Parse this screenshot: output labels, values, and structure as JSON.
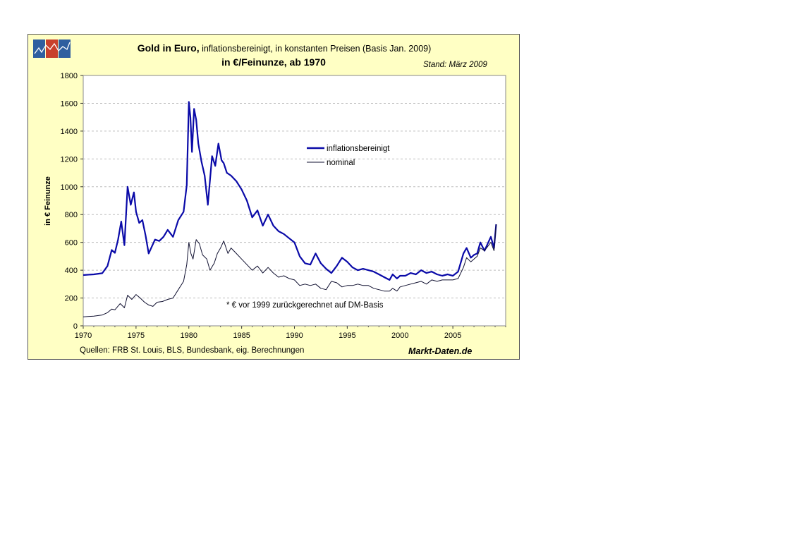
{
  "chart_data": {
    "type": "line",
    "title_main": "Gold in Euro,",
    "title_sub": " inflationsbereinigt, in konstanten Preisen (Basis Jan. 2009)",
    "title_line2": "in €/Feinunze, ab 1970",
    "stand": "Stand: März 2009",
    "ylabel": "in € Feinunze",
    "xlabel": "",
    "ylim": [
      0,
      1800
    ],
    "xlim": [
      1970,
      2010
    ],
    "yticks": [
      "0",
      "200",
      "400",
      "600",
      "800",
      "1000",
      "1200",
      "1400",
      "1600",
      "1800"
    ],
    "xticks": [
      "1970",
      "1975",
      "1980",
      "1985",
      "1990",
      "1995",
      "2000",
      "2005"
    ],
    "grid": "horizontal dashed",
    "legend_position": "upper-center",
    "annotation": "* € vor 1999 zurückgerechnet auf DM-Basis",
    "sources": "Quellen: FRB St. Louis, BLS, Bundesbank, eig. Berechnungen",
    "brand": "Markt-Daten.de",
    "colors": {
      "real": "#0a0aa8",
      "nominal": "#101030",
      "background": "#ffffc4",
      "plot": "#ffffff"
    },
    "series": [
      {
        "name": "inflationsbereinigt",
        "x": [
          1970.0,
          1971.0,
          1971.8,
          1972.3,
          1972.7,
          1973.0,
          1973.3,
          1973.6,
          1973.9,
          1974.2,
          1974.5,
          1974.8,
          1975.0,
          1975.3,
          1975.6,
          1975.9,
          1976.2,
          1976.5,
          1976.8,
          1977.2,
          1977.6,
          1978.0,
          1978.5,
          1979.0,
          1979.5,
          1979.8,
          1980.0,
          1980.15,
          1980.3,
          1980.5,
          1980.7,
          1980.9,
          1981.2,
          1981.5,
          1981.8,
          1982.2,
          1982.5,
          1982.8,
          1983.1,
          1983.3,
          1983.6,
          1984.0,
          1984.5,
          1985.0,
          1985.5,
          1986.0,
          1986.5,
          1987.0,
          1987.5,
          1988.0,
          1988.5,
          1989.0,
          1989.5,
          1990.0,
          1990.5,
          1991.0,
          1991.5,
          1992.0,
          1992.5,
          1993.0,
          1993.5,
          1994.0,
          1994.5,
          1995.0,
          1995.5,
          1996.0,
          1996.5,
          1997.0,
          1997.5,
          1998.0,
          1998.5,
          1999.0,
          1999.3,
          1999.7,
          2000.0,
          2000.5,
          2001.0,
          2001.5,
          2002.0,
          2002.5,
          2003.0,
          2003.5,
          2004.0,
          2004.5,
          2005.0,
          2005.5,
          2006.0,
          2006.3,
          2006.7,
          2007.0,
          2007.3,
          2007.6,
          2008.0,
          2008.3,
          2008.6,
          2008.9,
          2009.1
        ],
        "values": [
          365,
          370,
          378,
          430,
          545,
          525,
          620,
          750,
          580,
          1000,
          870,
          960,
          820,
          740,
          760,
          650,
          520,
          570,
          620,
          610,
          640,
          690,
          640,
          760,
          820,
          1010,
          1610,
          1500,
          1250,
          1560,
          1480,
          1310,
          1180,
          1080,
          870,
          1220,
          1150,
          1310,
          1190,
          1170,
          1100,
          1080,
          1040,
          980,
          900,
          780,
          830,
          720,
          800,
          720,
          680,
          660,
          630,
          600,
          500,
          450,
          440,
          520,
          450,
          410,
          380,
          430,
          490,
          460,
          420,
          400,
          410,
          400,
          390,
          370,
          350,
          330,
          370,
          340,
          360,
          360,
          380,
          370,
          400,
          380,
          390,
          370,
          360,
          370,
          360,
          390,
          520,
          560,
          490,
          510,
          520,
          600,
          540,
          590,
          640,
          560,
          730
        ]
      },
      {
        "name": "nominal",
        "x": [
          1970.0,
          1971.0,
          1971.8,
          1972.3,
          1972.7,
          1973.0,
          1973.5,
          1973.9,
          1974.2,
          1974.6,
          1975.0,
          1975.4,
          1975.8,
          1976.2,
          1976.6,
          1977.0,
          1977.5,
          1978.0,
          1978.5,
          1979.0,
          1979.5,
          1979.8,
          1980.0,
          1980.2,
          1980.4,
          1980.7,
          1981.0,
          1981.3,
          1981.7,
          1982.0,
          1982.4,
          1982.7,
          1983.0,
          1983.3,
          1983.7,
          1984.0,
          1984.5,
          1985.0,
          1985.5,
          1986.0,
          1986.5,
          1987.0,
          1987.5,
          1988.0,
          1988.5,
          1989.0,
          1989.5,
          1990.0,
          1990.5,
          1991.0,
          1991.5,
          1992.0,
          1992.5,
          1993.0,
          1993.5,
          1994.0,
          1994.5,
          1995.0,
          1995.5,
          1996.0,
          1996.5,
          1997.0,
          1997.5,
          1998.0,
          1998.5,
          1999.0,
          1999.3,
          1999.7,
          2000.0,
          2000.5,
          2001.0,
          2001.5,
          2002.0,
          2002.5,
          2003.0,
          2003.5,
          2004.0,
          2004.5,
          2005.0,
          2005.5,
          2006.0,
          2006.3,
          2006.7,
          2007.0,
          2007.3,
          2007.6,
          2008.0,
          2008.3,
          2008.6,
          2008.9,
          2009.1
        ],
        "values": [
          65,
          70,
          78,
          95,
          120,
          115,
          160,
          130,
          220,
          190,
          225,
          200,
          170,
          150,
          140,
          170,
          175,
          190,
          200,
          260,
          320,
          440,
          600,
          520,
          480,
          620,
          590,
          510,
          480,
          400,
          450,
          520,
          560,
          610,
          520,
          560,
          520,
          480,
          440,
          400,
          430,
          380,
          420,
          380,
          350,
          360,
          340,
          330,
          290,
          300,
          290,
          300,
          270,
          260,
          320,
          310,
          280,
          290,
          290,
          300,
          290,
          290,
          270,
          260,
          250,
          250,
          270,
          250,
          280,
          290,
          300,
          310,
          320,
          300,
          330,
          320,
          330,
          330,
          330,
          340,
          420,
          490,
          460,
          480,
          500,
          560,
          540,
          570,
          600,
          540,
          730
        ]
      }
    ]
  }
}
